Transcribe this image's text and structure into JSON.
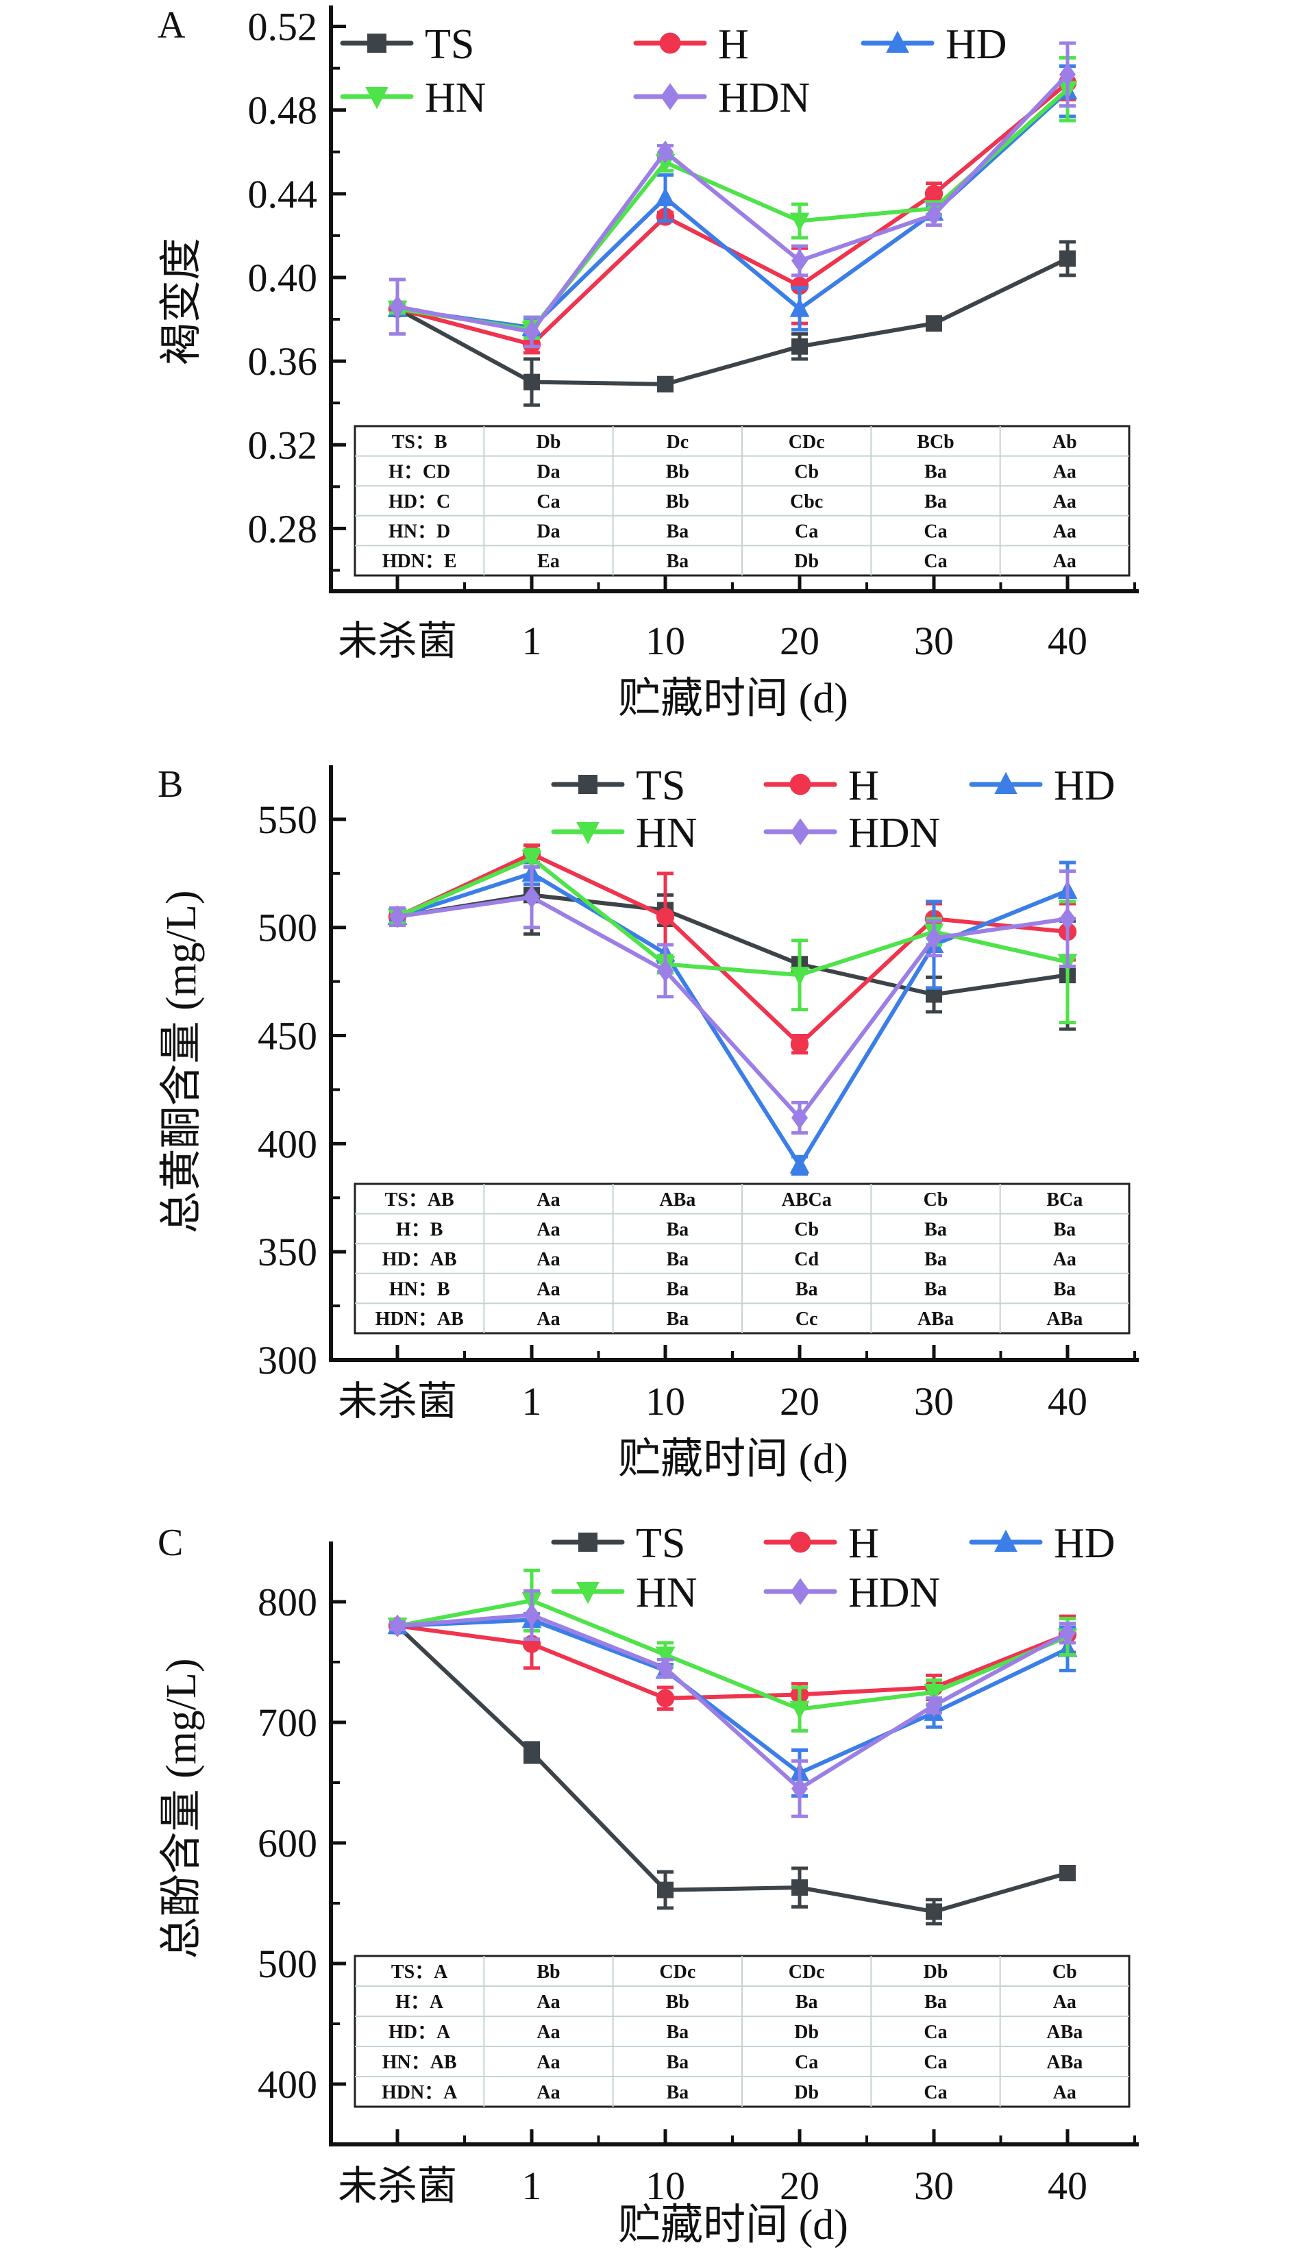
{
  "chart_data": [
    {
      "panel": "A",
      "type": "line",
      "title": "",
      "xlabel": "贮藏时间 (d)",
      "ylabel": "褐变度",
      "categories": [
        "未杀菌",
        "1",
        "10",
        "20",
        "30",
        "40"
      ],
      "ylim": [
        0.25,
        0.53
      ],
      "yticks": [
        0.28,
        0.32,
        0.36,
        0.4,
        0.44,
        0.48,
        0.52
      ],
      "ytick_labels": [
        "0.28",
        "0.32",
        "0.36",
        "0.40",
        "0.44",
        "0.48",
        "0.52"
      ],
      "legend": "top-left",
      "grid": false,
      "series": [
        {
          "name": "TS",
          "color": "#3d4449",
          "marker": "square",
          "values": [
            0.385,
            0.35,
            0.349,
            0.367,
            0.378,
            0.409
          ],
          "errors": [
            0.002,
            0.011,
            0.002,
            0.006,
            0.002,
            0.008
          ]
        },
        {
          "name": "H",
          "color": "#f0344e",
          "marker": "circle",
          "values": [
            0.385,
            0.368,
            0.429,
            0.396,
            0.44,
            0.493
          ],
          "errors": [
            0.002,
            0.004,
            0.002,
            0.018,
            0.005,
            0.008
          ]
        },
        {
          "name": "HD",
          "color": "#3b7ee8",
          "marker": "triangle-up",
          "values": [
            0.385,
            0.376,
            0.438,
            0.385,
            0.431,
            0.489
          ],
          "errors": [
            0.002,
            0.004,
            0.011,
            0.01,
            0.003,
            0.012
          ]
        },
        {
          "name": "HN",
          "color": "#4fe34a",
          "marker": "triangle-down",
          "values": [
            0.385,
            0.375,
            0.455,
            0.427,
            0.433,
            0.49
          ],
          "errors": [
            0.002,
            0.004,
            0.004,
            0.008,
            0.003,
            0.015
          ]
        },
        {
          "name": "HDN",
          "color": "#9b7fe6",
          "marker": "diamond",
          "values": [
            0.386,
            0.374,
            0.46,
            0.408,
            0.43,
            0.497
          ],
          "errors": [
            0.013,
            0.007,
            0.003,
            0.007,
            0.005,
            0.015
          ]
        }
      ],
      "table": [
        [
          "TS：B",
          "Db",
          "Dc",
          "CDc",
          "BCb",
          "Ab"
        ],
        [
          "H：CD",
          "Da",
          "Bb",
          "Cb",
          "Ba",
          "Aa"
        ],
        [
          "HD：C",
          "Ca",
          "Bb",
          "Cbc",
          "Ba",
          "Aa"
        ],
        [
          "HN：D",
          "Da",
          "Ba",
          "Ca",
          "Ca",
          "Aa"
        ],
        [
          "HDN：E",
          "Ea",
          "Ba",
          "Db",
          "Ca",
          "Aa"
        ]
      ]
    },
    {
      "panel": "B",
      "type": "line",
      "title": "",
      "xlabel": "贮藏时间 (d)",
      "ylabel": "总黄酮含量 (mg/L)",
      "categories": [
        "未杀菌",
        "1",
        "10",
        "20",
        "30",
        "40"
      ],
      "ylim": [
        300,
        575
      ],
      "yticks": [
        300,
        350,
        400,
        450,
        500,
        550
      ],
      "ytick_labels": [
        "300",
        "350",
        "400",
        "450",
        "500",
        "550"
      ],
      "legend": "top-right",
      "grid": false,
      "series": [
        {
          "name": "TS",
          "color": "#3d4449",
          "marker": "square",
          "values": [
            505,
            515,
            508,
            483,
            469,
            478
          ],
          "errors": [
            3,
            18,
            7,
            3,
            8,
            25
          ]
        },
        {
          "name": "H",
          "color": "#f0344e",
          "marker": "circle",
          "values": [
            505,
            534,
            505,
            446,
            504,
            498
          ],
          "errors": [
            3,
            4,
            20,
            4,
            7,
            13
          ]
        },
        {
          "name": "HD",
          "color": "#3b7ee8",
          "marker": "triangle-up",
          "values": [
            505,
            525,
            488,
            390,
            492,
            517
          ],
          "errors": [
            3,
            5,
            4,
            4,
            20,
            13
          ]
        },
        {
          "name": "HN",
          "color": "#4fe34a",
          "marker": "triangle-down",
          "values": [
            505,
            532,
            483,
            478,
            498,
            484
          ],
          "errors": [
            3,
            4,
            4,
            16,
            6,
            28
          ]
        },
        {
          "name": "HDN",
          "color": "#9b7fe6",
          "marker": "diamond",
          "values": [
            505,
            514,
            480,
            412,
            495,
            504
          ],
          "errors": [
            4,
            14,
            12,
            7,
            8,
            22
          ]
        }
      ],
      "table": [
        [
          "TS：AB",
          "Aa",
          "ABa",
          "ABCa",
          "Cb",
          "BCa"
        ],
        [
          "H：B",
          "Aa",
          "Ba",
          "Cb",
          "Ba",
          "Ba"
        ],
        [
          "HD：AB",
          "Aa",
          "Ba",
          "Cd",
          "Ba",
          "Aa"
        ],
        [
          "HN：B",
          "Aa",
          "Ba",
          "Ba",
          "Ba",
          "Ba"
        ],
        [
          "HDN：AB",
          "Aa",
          "Ba",
          "Cc",
          "ABa",
          "ABa"
        ]
      ]
    },
    {
      "panel": "C",
      "type": "line",
      "title": "",
      "xlabel": "贮藏时间 (d)",
      "ylabel": "总酚含量 (mg/L)",
      "categories": [
        "未杀菌",
        "1",
        "10",
        "20",
        "30",
        "40"
      ],
      "ylim": [
        350,
        850
      ],
      "yticks": [
        400,
        500,
        600,
        700,
        800
      ],
      "ytick_labels": [
        "400",
        "500",
        "600",
        "700",
        "800"
      ],
      "legend": "top-right",
      "grid": false,
      "series": [
        {
          "name": "TS",
          "color": "#3d4449",
          "marker": "square",
          "values": [
            780,
            675,
            561,
            563,
            543,
            575
          ],
          "errors": [
            3,
            8,
            15,
            16,
            10,
            4
          ]
        },
        {
          "name": "H",
          "color": "#f0344e",
          "marker": "circle",
          "values": [
            780,
            765,
            720,
            723,
            729,
            773
          ],
          "errors": [
            3,
            20,
            9,
            9,
            10,
            15
          ]
        },
        {
          "name": "HD",
          "color": "#3b7ee8",
          "marker": "triangle-up",
          "values": [
            780,
            785,
            743,
            658,
            708,
            761
          ],
          "errors": [
            3,
            5,
            5,
            19,
            12,
            18
          ]
        },
        {
          "name": "HN",
          "color": "#4fe34a",
          "marker": "triangle-down",
          "values": [
            780,
            801,
            756,
            711,
            725,
            771
          ],
          "errors": [
            3,
            25,
            10,
            18,
            10,
            15
          ]
        },
        {
          "name": "HDN",
          "color": "#9b7fe6",
          "marker": "diamond",
          "values": [
            780,
            789,
            745,
            645,
            714,
            774
          ],
          "errors": [
            3,
            20,
            7,
            23,
            6,
            8
          ]
        }
      ],
      "table": [
        [
          "TS：A",
          "Bb",
          "CDc",
          "CDc",
          "Db",
          "Cb"
        ],
        [
          "H：A",
          "Aa",
          "Bb",
          "Ba",
          "Ba",
          "Aa"
        ],
        [
          "HD：A",
          "Aa",
          "Ba",
          "Db",
          "Ca",
          "ABa"
        ],
        [
          "HN：AB",
          "Aa",
          "Ba",
          "Ca",
          "Ca",
          "ABa"
        ],
        [
          "HDN：A",
          "Aa",
          "Ba",
          "Db",
          "Ca",
          "Aa"
        ]
      ]
    }
  ]
}
